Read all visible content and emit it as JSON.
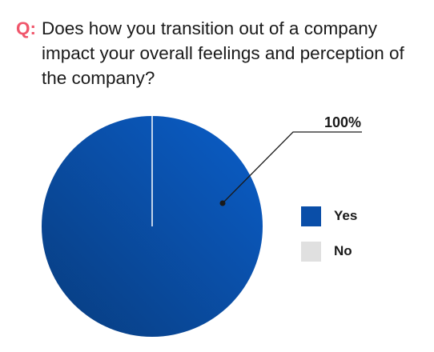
{
  "question": {
    "prefix": "Q:",
    "text": "Does how you transition out of a company impact your overall feelings and perception of the company?"
  },
  "chart_data": {
    "type": "pie",
    "title": "",
    "categories": [
      "Yes",
      "No"
    ],
    "values": [
      100,
      0
    ],
    "data_labels": [
      "100%"
    ],
    "colors": {
      "Yes": "#0a4ea8",
      "No": "#e0e0e0"
    },
    "legend": "right",
    "start": "top"
  }
}
